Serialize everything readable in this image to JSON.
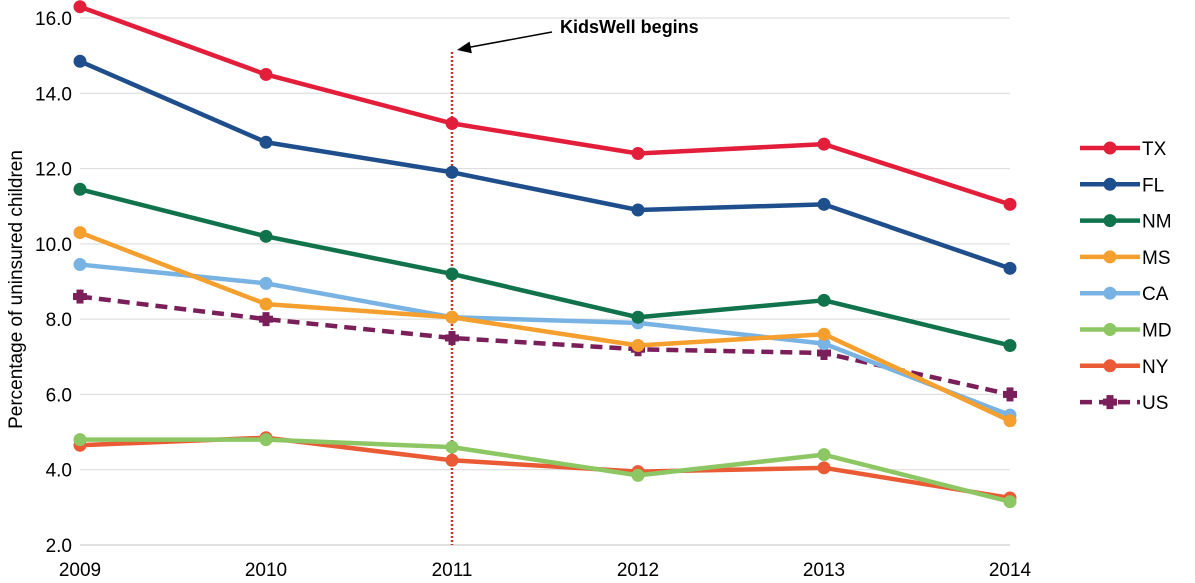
{
  "chart_data": {
    "type": "line",
    "title": "",
    "xlabel": "",
    "ylabel": "Percentage of uninsured children",
    "x": [
      "2009",
      "2010",
      "2011",
      "2012",
      "2013",
      "2014"
    ],
    "ylim": [
      2.0,
      16.0
    ],
    "yticks": [
      "2.0",
      "4.0",
      "6.0",
      "8.0",
      "10.0",
      "12.0",
      "14.0",
      "16.0"
    ],
    "grid": true,
    "legend_position": "right",
    "series": [
      {
        "name": "TX",
        "color": "#E31E3A",
        "dash": false,
        "values": [
          16.3,
          14.5,
          13.2,
          12.4,
          12.65,
          11.05
        ]
      },
      {
        "name": "FL",
        "color": "#1F4E8C",
        "dash": false,
        "values": [
          14.85,
          12.7,
          11.9,
          10.9,
          11.05,
          9.35
        ]
      },
      {
        "name": "NM",
        "color": "#11734B",
        "dash": false,
        "values": [
          11.45,
          10.2,
          9.2,
          8.05,
          8.5,
          7.3
        ]
      },
      {
        "name": "MS",
        "color": "#F49F2E",
        "dash": false,
        "values": [
          10.3,
          8.4,
          8.05,
          7.3,
          7.6,
          5.3
        ]
      },
      {
        "name": "CA",
        "color": "#79B3E3",
        "dash": false,
        "values": [
          9.45,
          8.95,
          8.05,
          7.9,
          7.35,
          5.45
        ]
      },
      {
        "name": "MD",
        "color": "#8DC763",
        "dash": false,
        "values": [
          4.8,
          4.8,
          4.6,
          3.85,
          4.4,
          3.15
        ]
      },
      {
        "name": "NY",
        "color": "#EA5A34",
        "dash": false,
        "values": [
          4.65,
          4.85,
          4.25,
          3.95,
          4.05,
          3.25
        ]
      },
      {
        "name": "US",
        "color": "#7B1F5A",
        "dash": true,
        "values": [
          8.6,
          8.0,
          7.5,
          7.2,
          7.1,
          6.0
        ]
      }
    ],
    "annotation": {
      "label": "KidsWell begins",
      "x": "2011",
      "color": "#C0392B"
    }
  }
}
